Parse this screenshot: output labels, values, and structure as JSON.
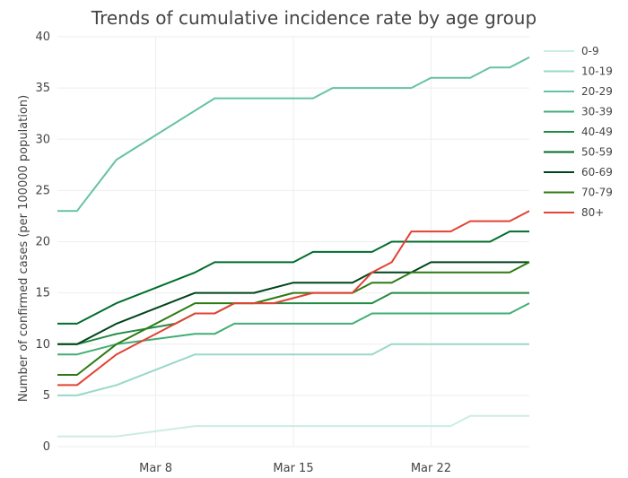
{
  "chart_data": {
    "type": "line",
    "title": "Trends of cumulative incidence rate by age group",
    "xlabel": "",
    "ylabel": "Number of confirmed cases (per 100000 population)",
    "x_start": "2020-03-03",
    "x_tick_labels": [
      {
        "label": "Mar 8",
        "date": "2020-03-08"
      },
      {
        "label": "Mar 15",
        "date": "2020-03-15"
      },
      {
        "label": "Mar 22",
        "date": "2020-03-22"
      }
    ],
    "xlim": [
      "2020-03-03",
      "2020-03-27"
    ],
    "ylim": [
      0,
      40
    ],
    "y_ticks": [
      0,
      5,
      10,
      15,
      20,
      25,
      30,
      35,
      40
    ],
    "grid": true,
    "legend_position": "right",
    "series": [
      {
        "name": "0-9",
        "color": "#ccece6",
        "points": [
          [
            "2020-03-03",
            1
          ],
          [
            "2020-03-04",
            1
          ],
          [
            "2020-03-06",
            1
          ],
          [
            "2020-03-10",
            2
          ],
          [
            "2020-03-11",
            2
          ],
          [
            "2020-03-19",
            2
          ],
          [
            "2020-03-20",
            2
          ],
          [
            "2020-03-23",
            2
          ],
          [
            "2020-03-24",
            3
          ],
          [
            "2020-03-27",
            3
          ]
        ]
      },
      {
        "name": "10-19",
        "color": "#99d8c9",
        "points": [
          [
            "2020-03-03",
            5
          ],
          [
            "2020-03-04",
            5
          ],
          [
            "2020-03-06",
            6
          ],
          [
            "2020-03-10",
            9
          ],
          [
            "2020-03-11",
            9
          ],
          [
            "2020-03-19",
            9
          ],
          [
            "2020-03-20",
            10
          ],
          [
            "2020-03-27",
            10
          ]
        ]
      },
      {
        "name": "20-29",
        "color": "#66c2a4",
        "points": [
          [
            "2020-03-03",
            23
          ],
          [
            "2020-03-04",
            23
          ],
          [
            "2020-03-06",
            28
          ],
          [
            "2020-03-11",
            34
          ],
          [
            "2020-03-12",
            34
          ],
          [
            "2020-03-16",
            34
          ],
          [
            "2020-03-17",
            35
          ],
          [
            "2020-03-21",
            35
          ],
          [
            "2020-03-22",
            36
          ],
          [
            "2020-03-24",
            36
          ],
          [
            "2020-03-25",
            37
          ],
          [
            "2020-03-26",
            37
          ],
          [
            "2020-03-27",
            38
          ]
        ]
      },
      {
        "name": "30-39",
        "color": "#41ae76",
        "points": [
          [
            "2020-03-03",
            9
          ],
          [
            "2020-03-04",
            9
          ],
          [
            "2020-03-06",
            10
          ],
          [
            "2020-03-10",
            11
          ],
          [
            "2020-03-11",
            11
          ],
          [
            "2020-03-12",
            12
          ],
          [
            "2020-03-18",
            12
          ],
          [
            "2020-03-19",
            13
          ],
          [
            "2020-03-26",
            13
          ],
          [
            "2020-03-27",
            14
          ]
        ]
      },
      {
        "name": "40-49",
        "color": "#238b45",
        "points": [
          [
            "2020-03-03",
            10
          ],
          [
            "2020-03-04",
            10
          ],
          [
            "2020-03-06",
            11
          ],
          [
            "2020-03-09",
            12
          ],
          [
            "2020-03-10",
            13
          ],
          [
            "2020-03-11",
            13
          ],
          [
            "2020-03-12",
            14
          ],
          [
            "2020-03-19",
            14
          ],
          [
            "2020-03-20",
            15
          ],
          [
            "2020-03-27",
            15
          ]
        ]
      },
      {
        "name": "50-59",
        "color": "#006d2c",
        "points": [
          [
            "2020-03-03",
            12
          ],
          [
            "2020-03-04",
            12
          ],
          [
            "2020-03-06",
            14
          ],
          [
            "2020-03-10",
            17
          ],
          [
            "2020-03-11",
            18
          ],
          [
            "2020-03-12",
            18
          ],
          [
            "2020-03-15",
            18
          ],
          [
            "2020-03-16",
            19
          ],
          [
            "2020-03-19",
            19
          ],
          [
            "2020-03-20",
            20
          ],
          [
            "2020-03-25",
            20
          ],
          [
            "2020-03-26",
            21
          ],
          [
            "2020-03-27",
            21
          ]
        ]
      },
      {
        "name": "60-69",
        "color": "#00441b",
        "points": [
          [
            "2020-03-03",
            10
          ],
          [
            "2020-03-04",
            10
          ],
          [
            "2020-03-06",
            12
          ],
          [
            "2020-03-10",
            15
          ],
          [
            "2020-03-13",
            15
          ],
          [
            "2020-03-15",
            16
          ],
          [
            "2020-03-18",
            16
          ],
          [
            "2020-03-19",
            17
          ],
          [
            "2020-03-21",
            17
          ],
          [
            "2020-03-22",
            18
          ],
          [
            "2020-03-27",
            18
          ]
        ]
      },
      {
        "name": "70-79",
        "color": "#2c7b13",
        "points": [
          [
            "2020-03-03",
            7
          ],
          [
            "2020-03-04",
            7
          ],
          [
            "2020-03-06",
            10
          ],
          [
            "2020-03-10",
            14
          ],
          [
            "2020-03-13",
            14
          ],
          [
            "2020-03-15",
            15
          ],
          [
            "2020-03-18",
            15
          ],
          [
            "2020-03-19",
            16
          ],
          [
            "2020-03-20",
            16
          ],
          [
            "2020-03-21",
            17
          ],
          [
            "2020-03-26",
            17
          ],
          [
            "2020-03-27",
            18
          ]
        ]
      },
      {
        "name": "80+",
        "color": "#e34234",
        "points": [
          [
            "2020-03-03",
            6
          ],
          [
            "2020-03-04",
            6
          ],
          [
            "2020-03-06",
            9
          ],
          [
            "2020-03-07",
            10
          ],
          [
            "2020-03-10",
            13
          ],
          [
            "2020-03-11",
            13
          ],
          [
            "2020-03-12",
            14
          ],
          [
            "2020-03-14",
            14
          ],
          [
            "2020-03-16",
            15
          ],
          [
            "2020-03-18",
            15
          ],
          [
            "2020-03-19",
            17
          ],
          [
            "2020-03-20",
            18
          ],
          [
            "2020-03-21",
            21
          ],
          [
            "2020-03-23",
            21
          ],
          [
            "2020-03-24",
            22
          ],
          [
            "2020-03-26",
            22
          ],
          [
            "2020-03-27",
            23
          ]
        ]
      }
    ]
  }
}
